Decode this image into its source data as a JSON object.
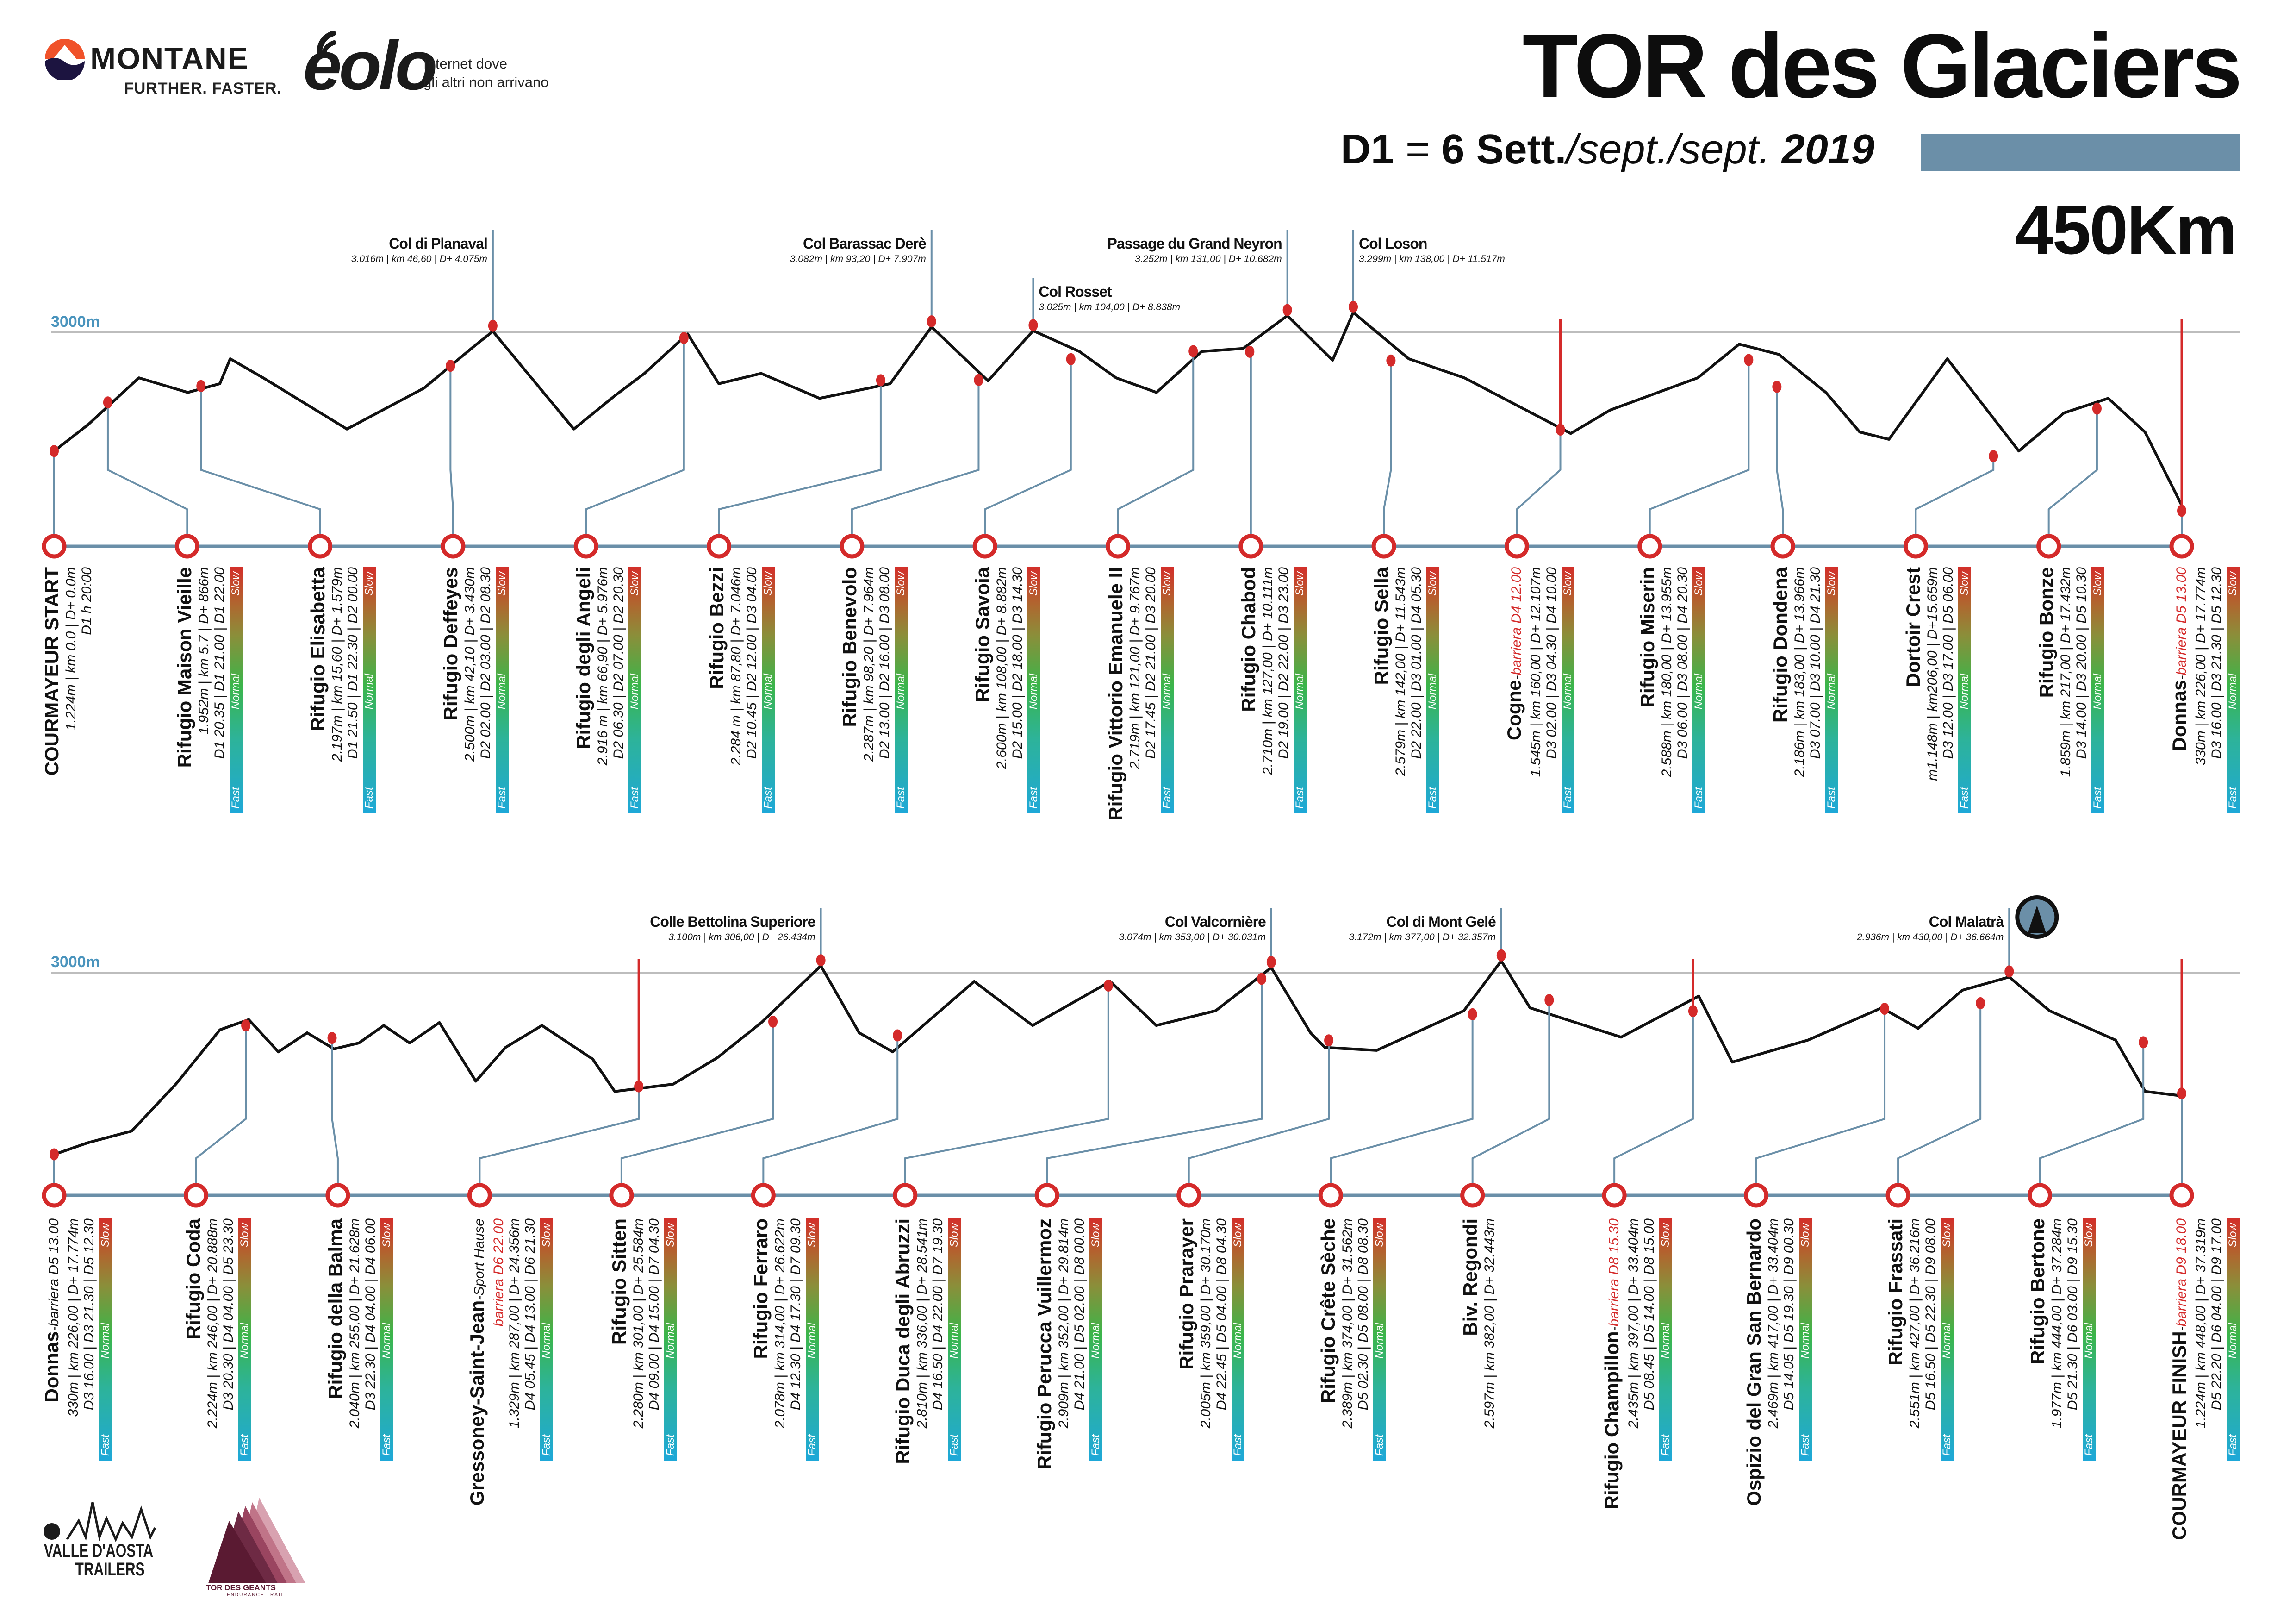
{
  "header": {
    "montane": {
      "name": "MONTANE",
      "tagline": "FURTHER. FASTER."
    },
    "eolo": {
      "name": "eolo",
      "tagline_1": "Internet dove",
      "tagline_2": "gli altri non arrivano"
    },
    "title": "TOR des Glaciers",
    "date": {
      "day": "D1",
      "eq": "=",
      "date": "6 Sett.",
      "alt": "/sept./sept.",
      "year": "2019"
    },
    "distance": "450Km",
    "accent_color": "#6b8fa8"
  },
  "speed_legend": {
    "fast": "Fast",
    "normal": "Normal",
    "slow": "Slow"
  },
  "sep": " - ",
  "colors": {
    "barrier": "#d42a2a",
    "axis": "#6a8fa8",
    "ref_label": "#4a94bd"
  },
  "rows": [
    {
      "ref_label": "3000m",
      "ref_elevation": 3000,
      "km_range": [
        0,
        226
      ],
      "stations": [
        {
          "name": "COURMAYEUR START",
          "stats": "1.224m | km 0.0 | D+ 0.0m",
          "times": "D1  h 20:00",
          "km": 0,
          "elev": 1224,
          "bar": false
        },
        {
          "name": "Rifugio Maison Vieille",
          "stats": "1.952m | km 5.7 | D+ 866m",
          "times": "D1 20.35 | D1 21.00 | D1 22.00",
          "km": 5.7,
          "elev": 1952,
          "bar": true
        },
        {
          "name": "Rifugio Elisabetta",
          "stats": "2.197m | km 15,60 | D+ 1.579m",
          "times": "D1 21.50 | D1 22.30 | D2 00.00",
          "km": 15.6,
          "elev": 2197,
          "bar": true
        },
        {
          "name": "Rifugio Deffeyes",
          "stats": "2.500m | km 42,10 | D+ 3.430m",
          "times": "D2 02.00 | D2 03.00 | D2 08.30",
          "km": 42.1,
          "elev": 2500,
          "bar": true
        },
        {
          "name": "Rifugio degli Angeli",
          "stats": "2.916 m | km 66,90 | D+ 5.976m",
          "times": "D2 06.30 | D2 07.00 | D2 20.30",
          "km": 66.9,
          "elev": 2916,
          "bar": true
        },
        {
          "name": "Rifugio Bezzi",
          "stats": "2.284 m | km 87,80 | D+ 7.046m",
          "times": "D2 10.45 | D2 12.00 | D3 04.00",
          "km": 87.8,
          "elev": 2284,
          "bar": true
        },
        {
          "name": "Rifugio Benevolo",
          "stats": "2.287m | km 98,20 | D+ 7.964m",
          "times": "D2 13.00 | D2 16.00 | D3 08.00",
          "km": 98.2,
          "elev": 2287,
          "bar": true
        },
        {
          "name": "Rifugio Savoia",
          "stats": "2.600m | km 108,00 | D+ 8.882m",
          "times": "D2 15.00 | D2 18.00 | D3 14.30",
          "km": 108,
          "elev": 2600,
          "bar": true
        },
        {
          "name": "Rifugio Vittorio Emanuele II",
          "stats": "2.719m | km 121,00 | D+ 9.767m",
          "times": "D2 17.45 | D2 21.00 | D3 20.00",
          "km": 121,
          "elev": 2719,
          "bar": true
        },
        {
          "name": "Rifugio Chabod",
          "stats": "2.710m | km 127,00 | D+ 10.111m",
          "times": "D2 19.00 | D2 22.00 | D3 23.00",
          "km": 127,
          "elev": 2710,
          "bar": true
        },
        {
          "name": "Rifugio Sella",
          "stats": "2.579m | km 142,00 | D+ 11.543m",
          "times": "D2 22.00 | D3 01.00 | D4 05.30",
          "km": 142,
          "elev": 2579,
          "bar": true
        },
        {
          "name": "Cogne",
          "barrier": "barriera D4 12.00",
          "stats": "1.545m | km 160,00 | D+ 12.107m",
          "times": "D3 02.00 | D3 04.30 | D4 10.00",
          "km": 160,
          "elev": 1545,
          "bar": true
        },
        {
          "name": "Rifugio Miserin",
          "stats": "2.588m | km 180,00 | D+ 13.955m",
          "times": "D3 06.00 | D3 08.00 | D4 20.30",
          "km": 180,
          "elev": 2588,
          "bar": true
        },
        {
          "name": "Rifugio Dondena",
          "stats": "2.186m | km 183,00 | D+ 13.966m",
          "times": "D3 07.00 | D3 10.00 | D4 21.30",
          "km": 183,
          "elev": 2186,
          "bar": true
        },
        {
          "name": "Dortoir Crest",
          "stats": "m1.148m | km206,00 | D+15.659m",
          "times": "D3 12.00 | D3 17.00 | D5 06.00",
          "km": 206,
          "elev": 1148,
          "bar": true
        },
        {
          "name": "Rifugio Bonze",
          "stats": "1.859m | km 217,00 | D+ 17.432m",
          "times": "D3 14.00 | D3 20.00 | D5 10.30",
          "km": 217,
          "elev": 1859,
          "bar": true
        },
        {
          "name": "Donnas",
          "barrier": "barriera D5 13.00",
          "stats": "330m | km 226,00 | D+ 17.774m",
          "times": "D3 16.00 | D3 21.30 | D5 12.30",
          "km": 226,
          "elev": 330,
          "bar": true
        }
      ],
      "peaks": [
        {
          "name": "Col di Planaval",
          "stats": "3.016m | km 46,60 | D+ 4.075m",
          "km": 46.6,
          "elev": 3016
        },
        {
          "name": "Col Barassac Derè",
          "stats": "3.082m | km 93,20 | D+ 7.907m",
          "km": 93.2,
          "elev": 3082
        },
        {
          "name": "Col Rosset",
          "stats": "3.025m | km 104,00 | D+ 8.838m",
          "km": 104,
          "elev": 3025
        },
        {
          "name": "Passage du Grand Neyron",
          "stats": "3.252m | km 131,00 | D+ 10.682m",
          "km": 131,
          "elev": 3252
        },
        {
          "name": "Col Loson",
          "stats": "3.299m | km 138,00 | D+ 11.517m",
          "km": 138,
          "elev": 3299
        }
      ],
      "profile": [
        [
          0,
          1224
        ],
        [
          3.6,
          1618
        ],
        [
          9,
          2320
        ],
        [
          14.2,
          2101
        ],
        [
          17.6,
          2232
        ],
        [
          18.7,
          2605
        ],
        [
          22.2,
          2320
        ],
        [
          31.1,
          1553
        ],
        [
          39.3,
          2167
        ],
        [
          44.5,
          2781
        ],
        [
          46.6,
          3016
        ],
        [
          55.2,
          1553
        ],
        [
          59.6,
          2057
        ],
        [
          62.7,
          2386
        ],
        [
          67.3,
          2978
        ],
        [
          70.6,
          2232
        ],
        [
          75.1,
          2386
        ],
        [
          81.3,
          2013
        ],
        [
          88.8,
          2232
        ],
        [
          93.2,
          3082
        ],
        [
          99.2,
          2276
        ],
        [
          104,
          3025
        ],
        [
          108.9,
          2715
        ],
        [
          112.8,
          2320
        ],
        [
          117.1,
          2101
        ],
        [
          121.9,
          2715
        ],
        [
          126.3,
          2759
        ],
        [
          131,
          3252
        ],
        [
          135.8,
          2583
        ],
        [
          138,
          3299
        ],
        [
          143.9,
          2605
        ],
        [
          149.8,
          2320
        ],
        [
          161.1,
          1487
        ],
        [
          165.3,
          1838
        ],
        [
          174.6,
          2320
        ],
        [
          179,
          2824
        ],
        [
          183.2,
          2671
        ],
        [
          188.2,
          2101
        ],
        [
          191.8,
          1509
        ],
        [
          194.9,
          1399
        ],
        [
          201.1,
          2605
        ],
        [
          208.7,
          1224
        ],
        [
          213.5,
          1794
        ],
        [
          218.2,
          2013
        ],
        [
          222.1,
          1509
        ],
        [
          226,
          412
        ]
      ]
    },
    {
      "ref_label": "3000m",
      "ref_elevation": 3000,
      "km_range": [
        226,
        448
      ],
      "stations": [
        {
          "name": "Donnas",
          "barrier": "barriera D5 13.00",
          "barrier_plain": true,
          "stats": "330m | km 226,00 | D+ 17.774m",
          "times": "D3 16.00 | D3 21.30 | D5 12.30",
          "km": 226,
          "elev": 330,
          "bar": true
        },
        {
          "name": "Rifugio Coda",
          "stats": "2.224m | km 246,00 | D+ 20.888m",
          "times": "D3 20.30 | D4 04.00 | D5 23.30",
          "km": 246,
          "elev": 2224,
          "bar": true
        },
        {
          "name": "Rifugio della Balma",
          "stats": "2.040m | km 255,00 | D+ 21.628m",
          "times": "D3 22.30 | D4 04.00 | D4 06.00",
          "km": 255,
          "elev": 2040,
          "bar": true
        },
        {
          "name": "Gressoney-Saint-Jean",
          "note": "Sport Hause",
          "barrier": "barriera D6 22.00",
          "stats": "1.329m | km 287,00 | D+ 24.356m",
          "times": "D4 05.45 | D4 13.00 | D6 21.30",
          "km": 287,
          "elev": 1329,
          "bar": true
        },
        {
          "name": "Rifugio Sitten",
          "stats": "2.280m | km 301,00 | D+ 25.584m",
          "times": "D4 09.00 | D4 15.00 | D7 04.30",
          "km": 301,
          "elev": 2280,
          "bar": true
        },
        {
          "name": "Rifugio Ferraro",
          "stats": "2.078m | km 314,00 | D+ 26.622m",
          "times": "D4 12.30 | D4 17.30 | D7 09.30",
          "km": 314,
          "elev": 2078,
          "bar": true
        },
        {
          "name": "Rifugio Duca degli Abruzzi",
          "stats": "2.810m | km 336,00 | D+ 28.541m",
          "times": "D4 16.50 | D4 22.00 | D7 19.30",
          "km": 336,
          "elev": 2810,
          "bar": true
        },
        {
          "name": "Rifugio Perucca Vuillermoz",
          "stats": "2.909m | km 352,00 | D+ 29.814m",
          "times": "D4 21.00 | D5 02.00 | D8 00.00",
          "km": 352,
          "elev": 2909,
          "bar": true
        },
        {
          "name": "Rifugio Prarayer",
          "stats": "2.005m | km 359,00 | D+ 30.170m",
          "times": "D4 22.45 | D5 04.00 | D8 04.30",
          "km": 359,
          "elev": 2005,
          "bar": true
        },
        {
          "name": "Rifugio Crête Sèche",
          "stats": "2.389m | km 374,00 | D+ 31.562m",
          "times": "D5 02.30 | D5 08.00 | D8 08.30",
          "km": 374,
          "elev": 2389,
          "bar": true
        },
        {
          "name": "Biv. Regondi",
          "stats": "2.597m | km 382,00 | D+ 32.443m",
          "km": 382,
          "elev": 2597,
          "bar": false
        },
        {
          "name": "Rifugio Champillon",
          "barrier": "barriera D8 15.30",
          "stats": "2.435m | km 397,00 | D+ 33.404m",
          "times": "D5 08.45 | D5 14.00 | D8 15.00",
          "km": 397,
          "elev": 2435,
          "bar": true
        },
        {
          "name": "Ospizio del Gran San Bernardo",
          "stats": "2.469m | km 417,00 | D+ 33.404m",
          "times": "D5 14.05 | D5 19.30 | D9 00.30",
          "km": 417,
          "elev": 2469,
          "bar": true
        },
        {
          "name": "Rifugio Frassati",
          "stats": "2.551m | km 427,00 | D+ 36.216m",
          "times": "D5 16.50 | D5 22.30 | D9 08.00",
          "km": 427,
          "elev": 2551,
          "bar": true
        },
        {
          "name": "Rifugio Bertone",
          "stats": "1.977m | km 444,00 | D+ 37.284m",
          "times": "D5 21.30 | D6 03.00 | D9 15.30",
          "km": 444,
          "elev": 1977,
          "bar": true
        },
        {
          "name": "COURMAYEUR FINISH",
          "barrier": "barriera D9 18.00",
          "stats": "1.224m | km 448,00 | D+ 37.319m",
          "times": "D5 22.20 | D6 04.00 | D9 17.00",
          "km": 448,
          "elev": 1224,
          "bar": true
        }
      ],
      "peaks": [
        {
          "name": "Colle Bettolina Superiore",
          "stats": "3.100m | km 306,00 | D+ 26.434m",
          "km": 306,
          "elev": 3100
        },
        {
          "name": "Col Valcornière",
          "stats": "3.074m | km 353,00 | D+ 30.031m",
          "km": 353,
          "elev": 3074
        },
        {
          "name": "Col di Mont Gelé",
          "stats": "3.172m | km 377,00 | D+ 32.357m",
          "km": 377,
          "elev": 3172
        },
        {
          "name": "Col Malatrà",
          "stats": "2.936m | km 430,00 | D+ 36.664m",
          "km": 430,
          "elev": 2936
        }
      ],
      "profile": [
        [
          226,
          328
        ],
        [
          229.5,
          500
        ],
        [
          234.1,
          673
        ],
        [
          238.7,
          1362
        ],
        [
          243.3,
          2160
        ],
        [
          246.3,
          2310
        ],
        [
          249.4,
          1836
        ],
        [
          252.4,
          2116
        ],
        [
          255.2,
          1879
        ],
        [
          257.8,
          1966
        ],
        [
          260.4,
          2224
        ],
        [
          263.1,
          1966
        ],
        [
          266.2,
          2267
        ],
        [
          270,
          1405
        ],
        [
          273.1,
          1901
        ],
        [
          276.9,
          2224
        ],
        [
          282.2,
          1729
        ],
        [
          284.5,
          1254
        ],
        [
          290.6,
          1362
        ],
        [
          295.2,
          1750
        ],
        [
          299.8,
          2267
        ],
        [
          306,
          3100
        ],
        [
          310,
          2116
        ],
        [
          313.5,
          1836
        ],
        [
          322,
          2871
        ],
        [
          328.1,
          2224
        ],
        [
          336.2,
          2871
        ],
        [
          341,
          2224
        ],
        [
          347.2,
          2440
        ],
        [
          353,
          3074
        ],
        [
          357.1,
          2116
        ],
        [
          358.6,
          1901
        ],
        [
          364,
          1858
        ],
        [
          373.1,
          2440
        ],
        [
          377,
          3172
        ],
        [
          380,
          2483
        ],
        [
          389.5,
          2052
        ],
        [
          397.6,
          2655
        ],
        [
          401.1,
          1685
        ],
        [
          409,
          2009
        ],
        [
          416.7,
          2483
        ],
        [
          420.5,
          2181
        ],
        [
          425.1,
          2741
        ],
        [
          430,
          2936
        ],
        [
          434.2,
          2440
        ],
        [
          441.1,
          2009
        ],
        [
          444.2,
          1254
        ],
        [
          448,
          1190
        ]
      ]
    }
  ],
  "footer": {
    "vda": {
      "line1": "VALLE D'AOSTA",
      "line2": "TRAILERS"
    },
    "tdg": {
      "name": "TOR DES GEANTS",
      "sub": "ENDURANCE TRAIL"
    }
  }
}
